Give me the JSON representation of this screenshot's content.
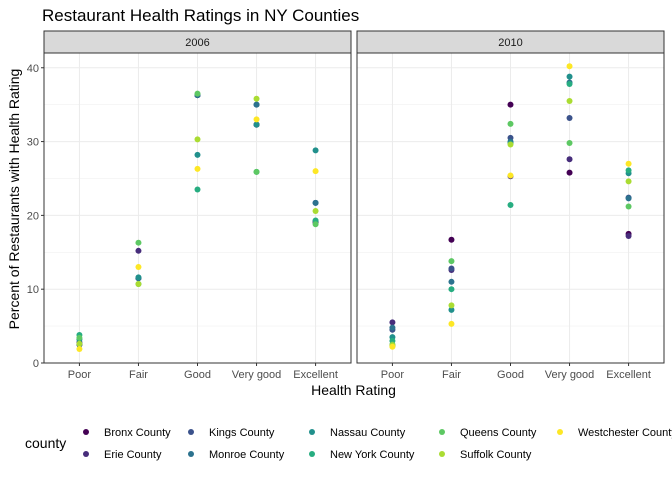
{
  "chart_data": {
    "type": "scatter",
    "title": "Restaurant Health Ratings in NY Counties",
    "xlabel": "Health Rating",
    "ylabel": "Percent of Restaurants with Health Rating",
    "categories": [
      "Poor",
      "Fair",
      "Good",
      "Very good",
      "Excellent"
    ],
    "ylim": [
      0,
      42
    ],
    "yticks": [
      0,
      10,
      20,
      30,
      40
    ],
    "grid": true,
    "legend_title": "county",
    "legend_position": "bottom",
    "facets": [
      "2006",
      "2010"
    ],
    "series": [
      {
        "name": "Bronx County",
        "color": "#440154",
        "values": {
          "2006": [
            2.5,
            11.5,
            36.3,
            32.3,
            19.2
          ],
          "2010": [
            2.3,
            16.7,
            35.0,
            25.8,
            17.5
          ]
        }
      },
      {
        "name": "Erie County",
        "color": "#472D7B",
        "values": {
          "2006": [
            2.5,
            15.2,
            36.3,
            32.3,
            19.0
          ],
          "2010": [
            5.5,
            12.6,
            25.3,
            27.6,
            17.2
          ]
        }
      },
      {
        "name": "Kings County",
        "color": "#3B528B",
        "values": {
          "2006": [
            2.8,
            11.5,
            36.3,
            35.0,
            21.7
          ],
          "2010": [
            4.5,
            12.8,
            30.5,
            33.2,
            22.4
          ]
        }
      },
      {
        "name": "Monroe County",
        "color": "#2C728E",
        "values": {
          "2006": [
            2.5,
            11.5,
            36.3,
            35.0,
            21.7
          ],
          "2010": [
            4.8,
            11.0,
            30.0,
            38.0,
            22.3
          ]
        }
      },
      {
        "name": "Nassau County",
        "color": "#21908C",
        "values": {
          "2006": [
            3.2,
            11.6,
            28.2,
            32.3,
            28.8
          ],
          "2010": [
            3.5,
            7.2,
            29.8,
            38.8,
            25.7
          ]
        }
      },
      {
        "name": "New York County",
        "color": "#27AD81",
        "values": {
          "2006": [
            3.8,
            10.7,
            23.5,
            25.9,
            19.3
          ],
          "2010": [
            3.0,
            10.0,
            21.4,
            37.8,
            26.1
          ]
        }
      },
      {
        "name": "Queens County",
        "color": "#5DC863",
        "values": {
          "2006": [
            3.4,
            16.3,
            36.5,
            25.9,
            18.8
          ],
          "2010": [
            2.5,
            13.8,
            32.4,
            29.8,
            21.2
          ]
        }
      },
      {
        "name": "Suffolk County",
        "color": "#AADC32",
        "values": {
          "2006": [
            2.6,
            10.7,
            30.3,
            35.8,
            20.6
          ],
          "2010": [
            2.4,
            7.8,
            29.6,
            35.5,
            24.6
          ]
        }
      },
      {
        "name": "Westchester County",
        "color": "#FDE725",
        "values": {
          "2006": [
            1.9,
            13.0,
            26.3,
            33.0,
            26.0
          ],
          "2010": [
            2.2,
            5.3,
            25.4,
            40.2,
            27.0
          ]
        }
      }
    ]
  }
}
